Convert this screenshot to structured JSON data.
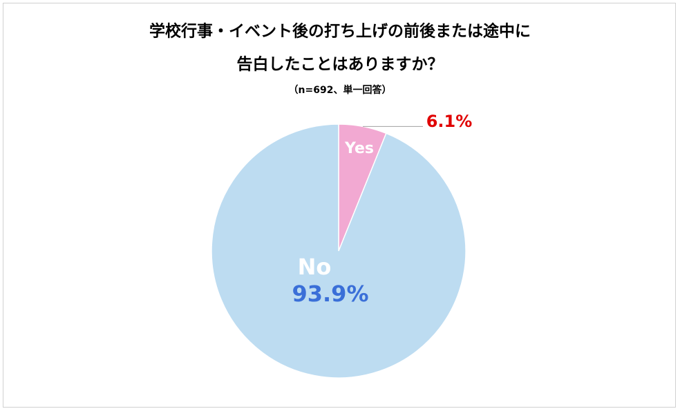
{
  "chart_data": {
    "type": "pie",
    "title": [
      "学校行事・イベント後の打ち上げの前後または途中に",
      "告白したことはありますか？"
    ],
    "subtitle": "（n=692、単一回答）",
    "categories": [
      "Yes",
      "No"
    ],
    "values": [
      6.1,
      93.9
    ],
    "value_labels": [
      "6.1%",
      "93.9%"
    ],
    "colors": [
      "#f2a9d2",
      "#bddcf1"
    ]
  }
}
